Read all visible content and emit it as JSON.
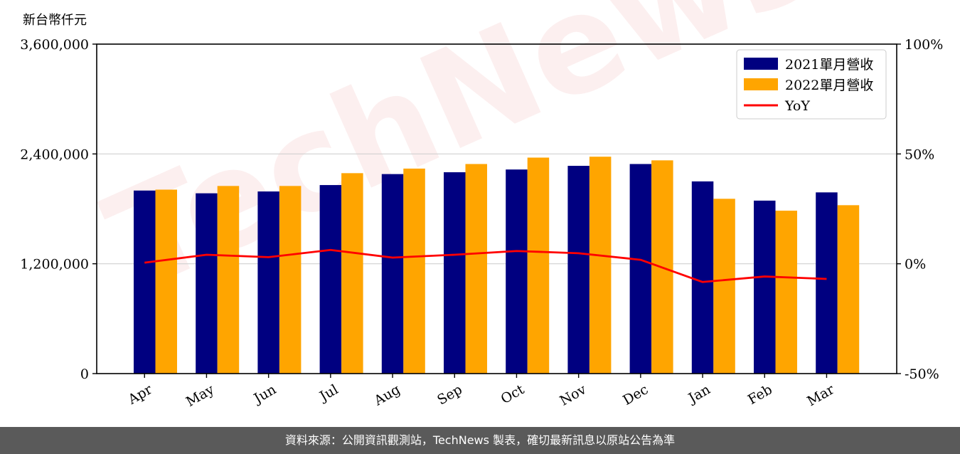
{
  "unit_label": "新台幣仟元",
  "watermark": "TechNews",
  "footer": "資料來源：公開資訊觀測站，TechNews 製表，確切最新訊息以原站公告為準",
  "colors": {
    "series_2021": "#000080",
    "series_2022": "#ffa500",
    "yoy": "#ff0000",
    "grid": "#d0d0d0",
    "footer_bg": "#5a5a5a"
  },
  "chart_data": {
    "type": "bar",
    "categories": [
      "Apr",
      "May",
      "Jun",
      "Jul",
      "Aug",
      "Sep",
      "Oct",
      "Nov",
      "Dec",
      "Jan",
      "Feb",
      "Mar"
    ],
    "series": [
      {
        "name": "2021單月營收",
        "type": "bar",
        "axis": "left",
        "values": [
          2000000,
          1970000,
          1990000,
          2060000,
          2180000,
          2200000,
          2230000,
          2270000,
          2290000,
          2100000,
          1890000,
          1980000
        ]
      },
      {
        "name": "2022單月營收",
        "type": "bar",
        "axis": "left",
        "values": [
          2010000,
          2050000,
          2050000,
          2190000,
          2240000,
          2290000,
          2360000,
          2370000,
          2330000,
          1910000,
          1780000,
          1840000
        ]
      },
      {
        "name": "YoY",
        "type": "line",
        "axis": "right",
        "values": [
          0.5,
          4.1,
          3.0,
          6.3,
          2.8,
          4.1,
          5.8,
          4.8,
          1.8,
          -8.3,
          -5.8,
          -6.9
        ]
      }
    ],
    "y_left": {
      "ylim": [
        0,
        3600000
      ],
      "ticks": [
        0,
        1200000,
        2400000,
        3600000
      ],
      "tick_labels": [
        "0",
        "1,200,000",
        "2,400,000",
        "3,600,000"
      ]
    },
    "y_right": {
      "ylim": [
        -50,
        100
      ],
      "ticks": [
        -50,
        0,
        50,
        100
      ],
      "tick_labels": [
        "-50%",
        "0%",
        "50%",
        "100%"
      ]
    },
    "grid": "horizontal",
    "legend": {
      "placement": "top-right",
      "entries": [
        "2021單月營收",
        "2022單月營收",
        "YoY"
      ]
    }
  }
}
